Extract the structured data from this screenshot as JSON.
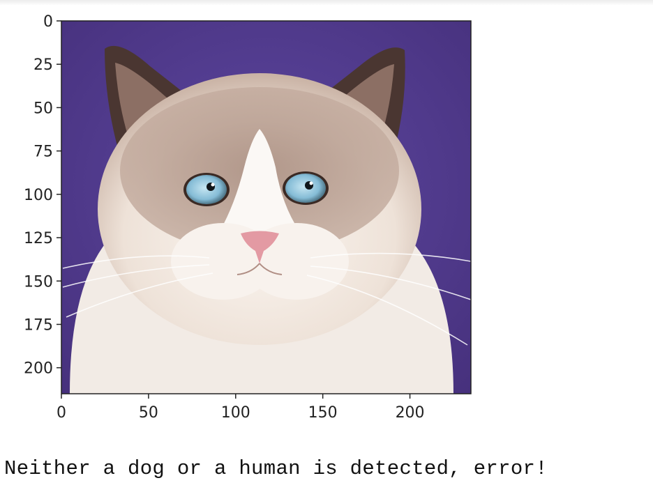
{
  "figure": {
    "image_description": "cat",
    "x_ticks": [
      0,
      50,
      100,
      150,
      200
    ],
    "y_ticks": [
      0,
      25,
      50,
      75,
      100,
      125,
      150,
      175,
      200
    ],
    "x_range": [
      0,
      235
    ],
    "y_range": [
      0,
      215
    ]
  },
  "colors": {
    "background": "#523c8c",
    "fur_light": "#f3ebe4",
    "fur_brown": "#8c7265",
    "ear_dark": "#4a3631",
    "eye_blue": "#8fc4dc",
    "nose_pink": "#e39aa3"
  },
  "output": {
    "message": "Neither a dog or a human is detected, error!"
  }
}
